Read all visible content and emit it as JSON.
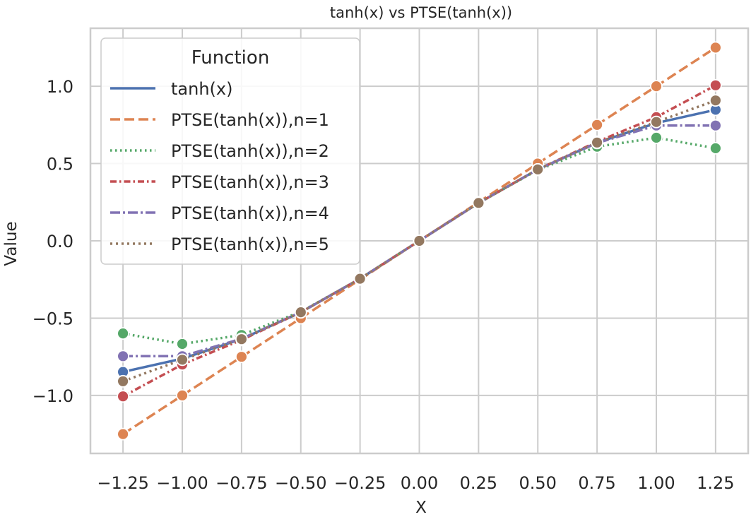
{
  "chart_data": {
    "type": "line",
    "title": "tanh(x) vs PTSE(tanh(x))",
    "xlabel": "X",
    "ylabel": "Value",
    "xlim": [
      -1.3875,
      1.3875
    ],
    "ylim": [
      -1.375,
      1.375
    ],
    "x": [
      -1.25,
      -1.0,
      -0.75,
      -0.5,
      -0.25,
      0.0,
      0.25,
      0.5,
      0.75,
      1.0,
      1.25
    ],
    "x_ticks": [
      -1.25,
      -1.0,
      -0.75,
      -0.5,
      -0.25,
      0.0,
      0.25,
      0.5,
      0.75,
      1.0,
      1.25
    ],
    "x_tick_labels": [
      "−1.25",
      "−1.00",
      "−0.75",
      "−0.50",
      "−0.25",
      "0.00",
      "0.25",
      "0.50",
      "0.75",
      "1.00",
      "1.25"
    ],
    "y_ticks": [
      -1.0,
      -0.5,
      0.0,
      0.5,
      1.0
    ],
    "y_tick_labels": [
      "−1.0",
      "−0.5",
      "0.0",
      "0.5",
      "1.0"
    ],
    "grid": true,
    "legend": {
      "title": "Function",
      "placement": "upper-left"
    },
    "series": [
      {
        "name": "tanh(x)",
        "color": "#4c72b0",
        "dash": "solid",
        "values": [
          -0.848,
          -0.762,
          -0.635,
          -0.462,
          -0.245,
          0.0,
          0.245,
          0.462,
          0.635,
          0.762,
          0.848
        ]
      },
      {
        "name": "PTSE(tanh(x)),n=1",
        "color": "#dd8452",
        "dash": "dashed",
        "values": [
          -1.25,
          -1.0,
          -0.75,
          -0.5,
          -0.25,
          0.0,
          0.25,
          0.5,
          0.75,
          1.0,
          1.25
        ]
      },
      {
        "name": "PTSE(tanh(x)),n=2",
        "color": "#55a868",
        "dash": "dotted",
        "values": [
          -0.599,
          -0.667,
          -0.609,
          -0.458,
          -0.245,
          0.0,
          0.245,
          0.458,
          0.609,
          0.667,
          0.599
        ]
      },
      {
        "name": "PTSE(tanh(x)),n=3",
        "color": "#c44e52",
        "dash": "dashdot",
        "values": [
          -1.006,
          -0.8,
          -0.641,
          -0.462,
          -0.245,
          0.0,
          0.245,
          0.462,
          0.641,
          0.8,
          1.006
        ]
      },
      {
        "name": "PTSE(tanh(x)),n=4",
        "color": "#8172b3",
        "dash": "longdashdot",
        "values": [
          -0.746,
          -0.746,
          -0.633,
          -0.462,
          -0.245,
          0.0,
          0.245,
          0.462,
          0.633,
          0.746,
          0.746
        ]
      },
      {
        "name": "PTSE(tanh(x)),n=5",
        "color": "#937860",
        "dash": "densedot",
        "values": [
          -0.908,
          -0.769,
          -0.636,
          -0.462,
          -0.245,
          0.0,
          0.245,
          0.462,
          0.636,
          0.769,
          0.908
        ]
      }
    ]
  }
}
